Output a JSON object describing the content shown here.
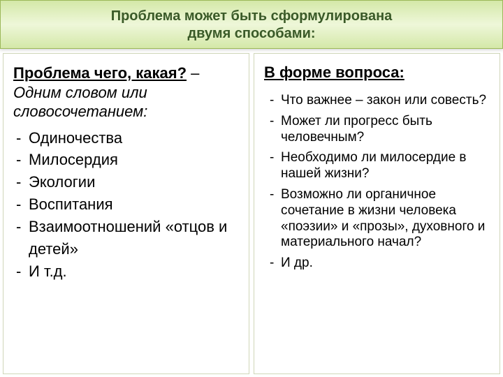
{
  "header": {
    "line1": "Проблема может быть сформулирована",
    "line2": "двумя способами:"
  },
  "left": {
    "lead_underline": "Проблема чего, какая?",
    "lead_connector": " – ",
    "lead_italic": "Одним словом или словосочетанием:",
    "items": [
      "Одиночества",
      "Милосердия",
      "Экологии",
      "Воспитания",
      "Взаимоотношений «отцов и детей»",
      "И т.д."
    ]
  },
  "right": {
    "lead": "В форме вопроса:",
    "items": [
      "Что важнее – закон или совесть?",
      "Может ли прогресс быть человечным?",
      "Необходимо ли милосердие в нашей жизни?",
      "Возможно ли органичное  сочетание в жизни человека «поэзии» и «прозы», духовного и материального начал?",
      "И др."
    ]
  },
  "colors": {
    "header_text": "#3a5a28",
    "header_bg_top": "#d4e8a8",
    "header_bg_mid": "#eef7d9",
    "header_border": "#9cb85a",
    "box_border": "#cfd6b8",
    "text": "#000000",
    "background": "#ffffff"
  },
  "fonts": {
    "header_size_pt": 20,
    "body_size_pt": 22,
    "right_list_size_pt": 19,
    "family": "Arial"
  }
}
